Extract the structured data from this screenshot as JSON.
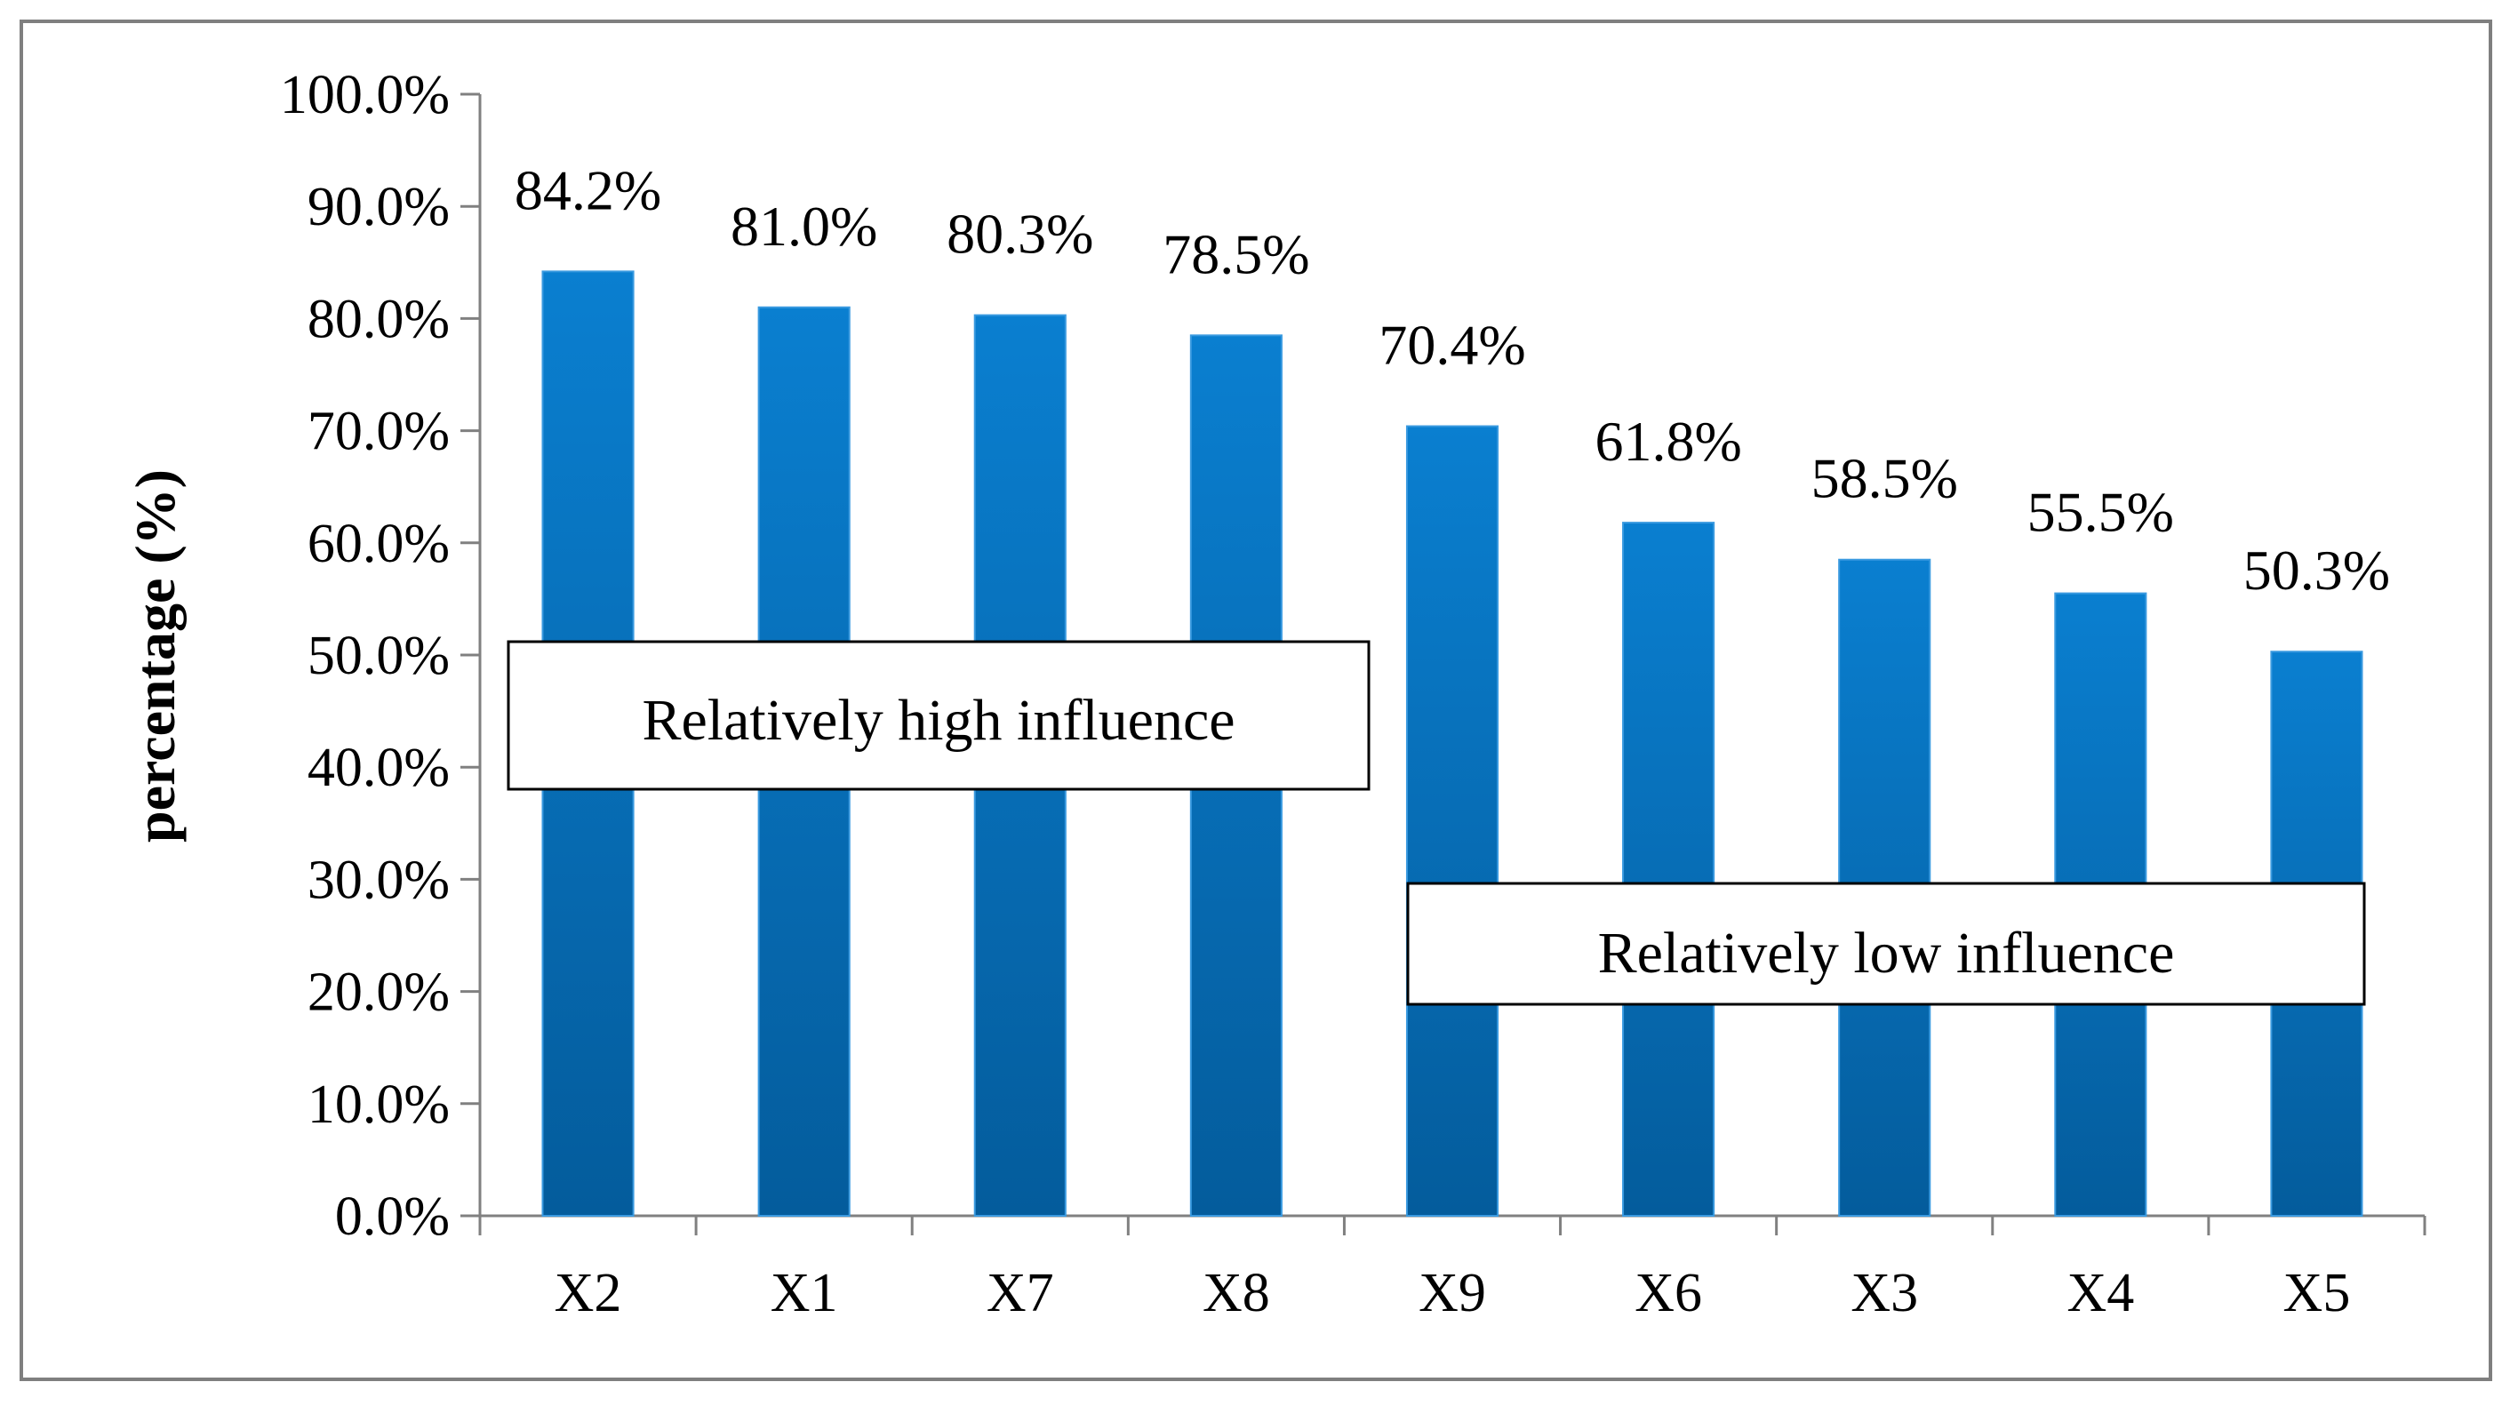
{
  "chart_data": {
    "type": "bar",
    "categories": [
      "X2",
      "X1",
      "X7",
      "X8",
      "X9",
      "X6",
      "X3",
      "X4",
      "X5"
    ],
    "values": [
      84.2,
      81.0,
      80.3,
      78.5,
      70.4,
      61.8,
      58.5,
      55.5,
      50.3
    ],
    "data_labels": [
      "84.2%",
      "81.0%",
      "80.3%",
      "78.5%",
      "70.4%",
      "61.8%",
      "58.5%",
      "55.5%",
      "50.3%"
    ],
    "title": "",
    "xlabel": "",
    "ylabel": "percentage (%)",
    "ylim": [
      0,
      100
    ],
    "yticks": [
      0,
      10,
      20,
      30,
      40,
      50,
      60,
      70,
      80,
      90,
      100
    ],
    "ytick_labels": [
      "0.0%",
      "10.0%",
      "20.0%",
      "30.0%",
      "40.0%",
      "50.0%",
      "60.0%",
      "70.0%",
      "80.0%",
      "90.0%",
      "100.0%"
    ],
    "grid": false,
    "legend": "none",
    "bar_color_top": "#0a7fd0",
    "bar_color_bottom": "#045c9c",
    "annotations": [
      {
        "text": "Relatively high influence",
        "group": "high"
      },
      {
        "text": "Relatively low influence",
        "group": "low"
      }
    ]
  }
}
